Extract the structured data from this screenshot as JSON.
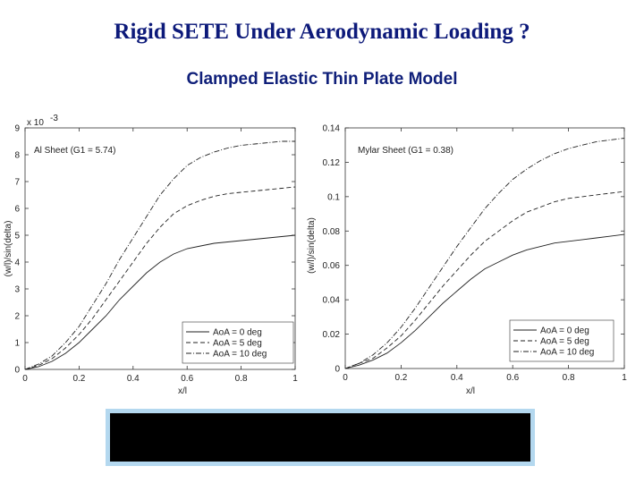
{
  "title": "Rigid SETE Under Aerodynamic Loading ?",
  "subtitle": "Clamped Elastic Thin Plate Model",
  "chart_data": [
    {
      "type": "line",
      "annotation": "Al Sheet (G1 = 5.74)",
      "exponent_label": "x 10",
      "exponent_power": "-3",
      "xlabel": "x/l",
      "ylabel": "(w/l)/sin(delta)",
      "xlim": [
        0,
        1
      ],
      "ylim": [
        0,
        9
      ],
      "xticks": [
        0,
        0.2,
        0.4,
        0.6,
        0.8,
        1
      ],
      "xtick_labels": [
        "0",
        "0.2",
        "0.4",
        "0.6",
        "0.8",
        "1"
      ],
      "yticks": [
        0,
        1,
        2,
        3,
        4,
        5,
        6,
        7,
        8,
        9
      ],
      "ytick_labels": [
        "0",
        "1",
        "2",
        "3",
        "4",
        "5",
        "6",
        "7",
        "8",
        "9"
      ],
      "legend_position": "bottom-right",
      "x": [
        0,
        0.05,
        0.1,
        0.15,
        0.2,
        0.25,
        0.3,
        0.35,
        0.4,
        0.45,
        0.5,
        0.55,
        0.6,
        0.65,
        0.7,
        0.75,
        0.8,
        0.85,
        0.9,
        0.95,
        1.0
      ],
      "series": [
        {
          "name": "AoA = 0 deg",
          "dash": "solid",
          "values": [
            0,
            0.1,
            0.3,
            0.6,
            1.0,
            1.5,
            2.0,
            2.6,
            3.1,
            3.6,
            4.0,
            4.3,
            4.5,
            4.6,
            4.7,
            4.75,
            4.8,
            4.85,
            4.9,
            4.95,
            5.0
          ]
        },
        {
          "name": "AoA = 5 deg",
          "dash": "dashed",
          "values": [
            0,
            0.15,
            0.4,
            0.8,
            1.3,
            1.9,
            2.6,
            3.3,
            4.0,
            4.7,
            5.3,
            5.8,
            6.1,
            6.3,
            6.45,
            6.55,
            6.6,
            6.65,
            6.7,
            6.75,
            6.8
          ]
        },
        {
          "name": "AoA = 10 deg",
          "dash": "dashdot",
          "values": [
            0,
            0.2,
            0.5,
            1.0,
            1.6,
            2.4,
            3.2,
            4.1,
            4.9,
            5.7,
            6.5,
            7.1,
            7.6,
            7.9,
            8.1,
            8.25,
            8.35,
            8.4,
            8.45,
            8.5,
            8.5
          ]
        }
      ]
    },
    {
      "type": "line",
      "annotation": "Mylar Sheet (G1 = 0.38)",
      "xlabel": "x/l",
      "ylabel": "(w/l)/sin(delta)",
      "xlim": [
        0,
        1
      ],
      "ylim": [
        0,
        0.14
      ],
      "xticks": [
        0,
        0.2,
        0.4,
        0.6,
        0.8,
        1
      ],
      "xtick_labels": [
        "0",
        "0.2",
        "0.4",
        "0.6",
        "0.8",
        "1"
      ],
      "yticks": [
        0,
        0.02,
        0.04,
        0.06,
        0.08,
        0.1,
        0.12,
        0.14
      ],
      "ytick_labels": [
        "0",
        "0.02",
        "0.04",
        "0.06",
        "0.08",
        "0.1",
        "0.12",
        "0.14"
      ],
      "legend_position": "bottom-right",
      "x": [
        0,
        0.05,
        0.1,
        0.15,
        0.2,
        0.25,
        0.3,
        0.35,
        0.4,
        0.45,
        0.5,
        0.55,
        0.6,
        0.65,
        0.7,
        0.75,
        0.8,
        0.85,
        0.9,
        0.95,
        1.0
      ],
      "series": [
        {
          "name": "AoA = 0 deg",
          "dash": "solid",
          "values": [
            0,
            0.002,
            0.005,
            0.009,
            0.015,
            0.022,
            0.03,
            0.038,
            0.045,
            0.052,
            0.058,
            0.062,
            0.066,
            0.069,
            0.071,
            0.073,
            0.074,
            0.075,
            0.076,
            0.077,
            0.078
          ]
        },
        {
          "name": "AoA = 5 deg",
          "dash": "dashed",
          "values": [
            0,
            0.003,
            0.006,
            0.012,
            0.019,
            0.028,
            0.038,
            0.048,
            0.057,
            0.066,
            0.074,
            0.08,
            0.086,
            0.091,
            0.094,
            0.097,
            0.099,
            0.1,
            0.101,
            0.102,
            0.103
          ]
        },
        {
          "name": "AoA = 10 deg",
          "dash": "dashdot",
          "values": [
            0,
            0.003,
            0.008,
            0.015,
            0.024,
            0.035,
            0.047,
            0.059,
            0.071,
            0.082,
            0.093,
            0.102,
            0.11,
            0.116,
            0.121,
            0.125,
            0.128,
            0.13,
            0.132,
            0.133,
            0.134
          ]
        }
      ]
    }
  ]
}
